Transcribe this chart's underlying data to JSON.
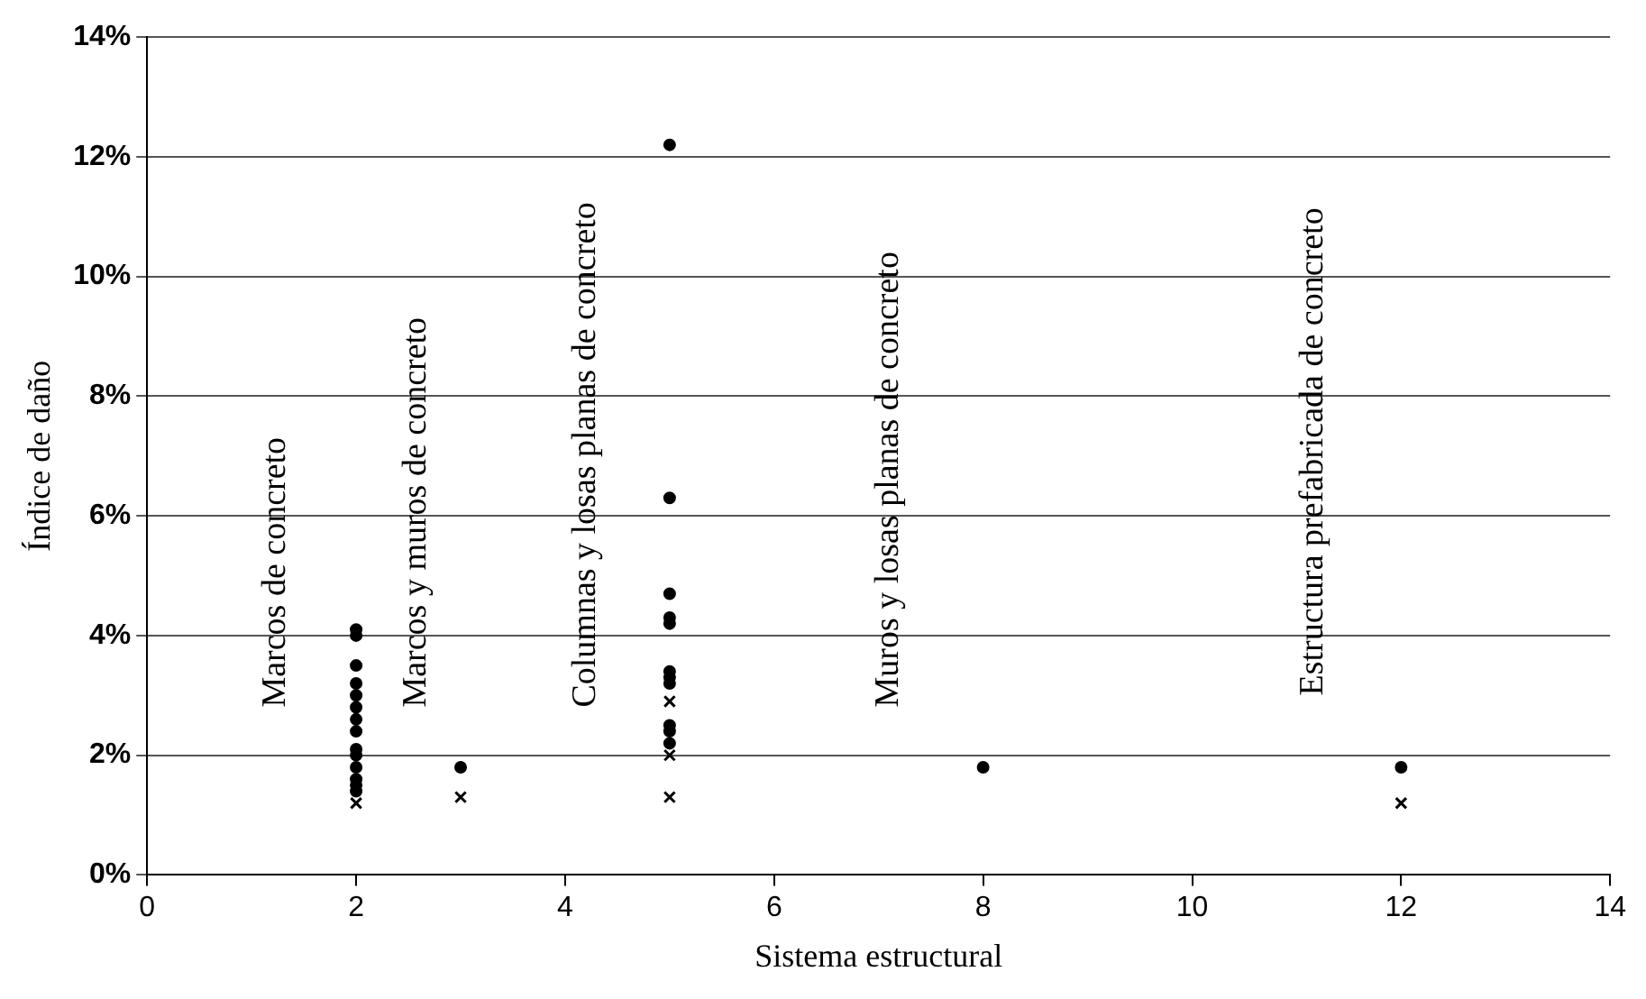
{
  "chart_data": {
    "type": "scatter",
    "xlabel": "Sistema estructural",
    "ylabel": "Índice de daño",
    "xlim": [
      0,
      14
    ],
    "xticks": [
      0,
      2,
      4,
      6,
      8,
      10,
      12,
      14
    ],
    "ylim": [
      0,
      14
    ],
    "yticks": [
      {
        "value": 0,
        "label": "0%"
      },
      {
        "value": 2,
        "label": "2%"
      },
      {
        "value": 4,
        "label": "4%"
      },
      {
        "value": 6,
        "label": "6%"
      },
      {
        "value": 8,
        "label": "8%"
      },
      {
        "value": 10,
        "label": "10%"
      },
      {
        "value": 12,
        "label": "12%"
      },
      {
        "value": 14,
        "label": "14%"
      }
    ],
    "grid": "y",
    "legend": false,
    "series": [
      {
        "color": "#000000",
        "marker": "circle",
        "x": [
          2,
          2,
          2,
          2,
          2,
          2,
          2,
          2,
          2,
          2,
          2,
          2,
          2,
          2,
          3,
          5,
          5,
          5,
          5,
          5,
          5,
          5,
          5,
          5,
          5,
          5,
          8,
          12
        ],
        "values": [
          4.1,
          4.0,
          3.5,
          3.2,
          3.0,
          2.8,
          2.6,
          2.4,
          2.1,
          2.0,
          1.8,
          1.6,
          1.5,
          1.4,
          1.8,
          12.2,
          6.3,
          4.7,
          4.3,
          4.2,
          3.4,
          3.3,
          3.2,
          2.5,
          2.4,
          2.2,
          1.8,
          1.8
        ]
      },
      {
        "color": "#000000",
        "marker": "cross",
        "x": [
          2,
          3,
          5,
          5,
          5,
          12
        ],
        "values": [
          1.2,
          1.3,
          2.9,
          2.0,
          1.3,
          1.2
        ]
      }
    ],
    "annotations": [
      "Marcos de concreto",
      "Marcos y muros de concreto",
      "Columnas y losas planas de concreto",
      "Muros y losas planas de concreto",
      "Estructura prefabricada de concreto"
    ]
  }
}
